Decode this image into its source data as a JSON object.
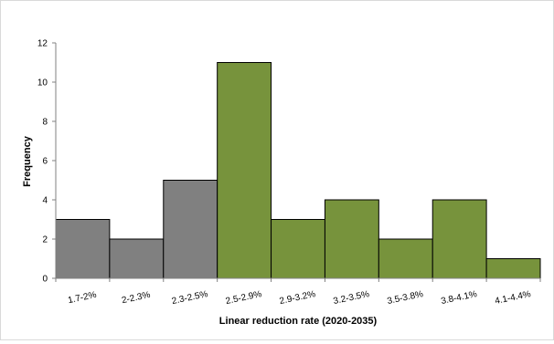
{
  "chart_data": {
    "type": "bar",
    "title": "",
    "xlabel": "Linear reduction rate (2020-2035)",
    "ylabel": "Frequency",
    "categories": [
      "1.7-2%",
      "2-2.3%",
      "2.3-2.5%",
      "2.5-2.9%",
      "2.9-3.2%",
      "3.2-3.5%",
      "3.5-3.8%",
      "3.8-4.1%",
      "4.1-4.4%"
    ],
    "values": [
      3,
      2,
      5,
      11,
      3,
      4,
      2,
      4,
      1
    ],
    "bar_colors": [
      "#808080",
      "#808080",
      "#808080",
      "#77933c",
      "#77933c",
      "#77933c",
      "#77933c",
      "#77933c",
      "#77933c"
    ],
    "ylim": [
      0,
      12
    ],
    "yticks": [
      0,
      2,
      4,
      6,
      8,
      10,
      12
    ],
    "grid": false,
    "legend": "none"
  }
}
